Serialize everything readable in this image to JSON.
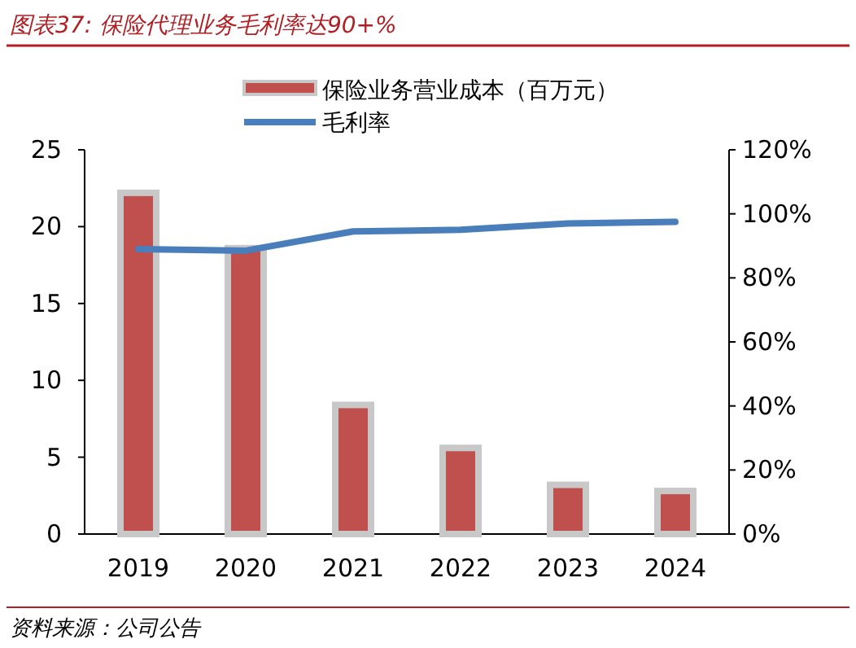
{
  "chart_data": {
    "type": "bar",
    "title": "图表37: 保险代理业务毛利率达90+%",
    "annotations": [
      "资料来源：公司公告"
    ],
    "categories": [
      "2019",
      "2020",
      "2021",
      "2022",
      "2023",
      "2024"
    ],
    "series": [
      {
        "name": "保险业务营业成本（百万元）",
        "color": "#c0504d",
        "values": [
          22.2,
          18.6,
          8.4,
          5.6,
          3.2,
          2.8
        ]
      },
      {
        "name": "毛利率",
        "type": "line",
        "axis": "y2",
        "color": "#4a7ebb",
        "values": [
          89,
          88.5,
          94.5,
          95,
          97,
          97.5
        ]
      }
    ],
    "ylim": [
      0,
      25
    ],
    "yticks": [
      0,
      5,
      10,
      15,
      20,
      25
    ],
    "y2lim": [
      0,
      120
    ],
    "y2ticks": [
      {
        "value": 0,
        "label": "0%"
      },
      {
        "value": 20,
        "label": "20%"
      },
      {
        "value": 40,
        "label": "40%"
      },
      {
        "value": 60,
        "label": "60%"
      },
      {
        "value": 80,
        "label": "80%"
      },
      {
        "value": 100,
        "label": "100%"
      },
      {
        "value": 120,
        "label": "120%"
      }
    ],
    "legend": "top"
  }
}
